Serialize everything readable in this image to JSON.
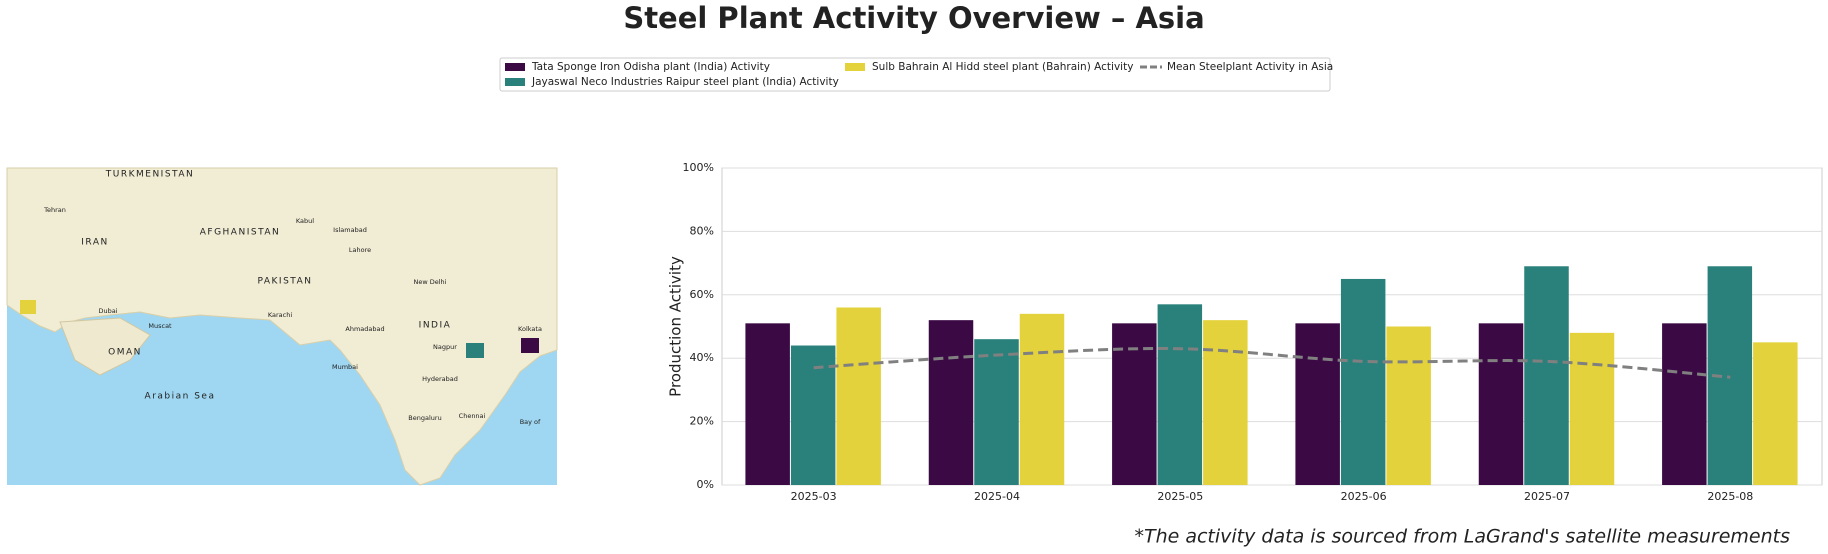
{
  "chart_data": {
    "type": "bar",
    "title": "Steel Plant Activity Overview – Asia",
    "ylabel": "Production Activity",
    "footnote": "*The activity data is sourced from LaGrand's satellite measurements",
    "categories": [
      "2025-03",
      "2025-04",
      "2025-05",
      "2025-06",
      "2025-07",
      "2025-08"
    ],
    "series": [
      {
        "name": "Tata Sponge Iron Odisha plant (India) Activity",
        "color": "#3b0a45",
        "values": [
          51,
          52,
          51,
          51,
          51,
          51
        ]
      },
      {
        "name": "Jayaswal Neco Industries Raipur steel plant (India) Activity",
        "color": "#2a817b",
        "values": [
          44,
          46,
          57,
          65,
          69,
          69
        ]
      },
      {
        "name": "Sulb Bahrain Al Hidd steel plant (Bahrain) Activity",
        "color": "#e3d23c",
        "values": [
          56,
          54,
          52,
          50,
          48,
          45
        ]
      }
    ],
    "lines": [
      {
        "name": "Mean Steelplant Activity in Asia",
        "color": "#808080",
        "style": "dashed",
        "values": [
          37,
          41,
          43,
          39,
          39,
          34
        ]
      }
    ],
    "ylim": [
      0,
      100
    ],
    "yticks": [
      {
        "value": 0,
        "label": "0%"
      },
      {
        "value": 20,
        "label": "20%"
      },
      {
        "value": 40,
        "label": "40%"
      },
      {
        "value": 60,
        "label": "60%"
      },
      {
        "value": 80,
        "label": "80%"
      },
      {
        "value": 100,
        "label": "100%"
      }
    ],
    "grid": true,
    "legend": "top"
  },
  "map": {
    "labels": [
      "TURKMENISTAN",
      "IRAN",
      "AFGHANISTAN",
      "PAKISTAN",
      "INDIA",
      "OMAN",
      "Arabian Sea",
      "Tehran",
      "Kabul",
      "Islamabad",
      "Lahore",
      "Karachi",
      "New Delhi",
      "Mumbai",
      "Hyderabad",
      "Bengaluru",
      "Chennai",
      "Muscat",
      "Dubai",
      "Kolkata",
      "Bay of",
      "Nagpur",
      "Ahmadabad"
    ]
  }
}
